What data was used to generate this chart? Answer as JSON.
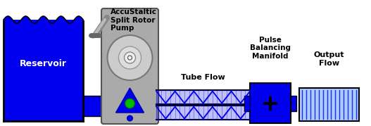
{
  "bg_color": "#ffffff",
  "blue": "#0000EE",
  "blue_dark": "#0000AA",
  "gray_pump": "#AAAAAA",
  "gray_dark": "#888888",
  "gray_med": "#999999",
  "white": "#ffffff",
  "black": "#000000",
  "green": "#00BB00",
  "reservoir_label": "Reservoir",
  "pump_label": "AccuStaltic\nSplit Rotor\nPump",
  "tube_label": "Tube Flow",
  "manifold_label": "Pulse\nBalancing\nManifold",
  "output_label": "Output\nFlow",
  "fig_w": 5.27,
  "fig_h": 1.79,
  "dpi": 100
}
